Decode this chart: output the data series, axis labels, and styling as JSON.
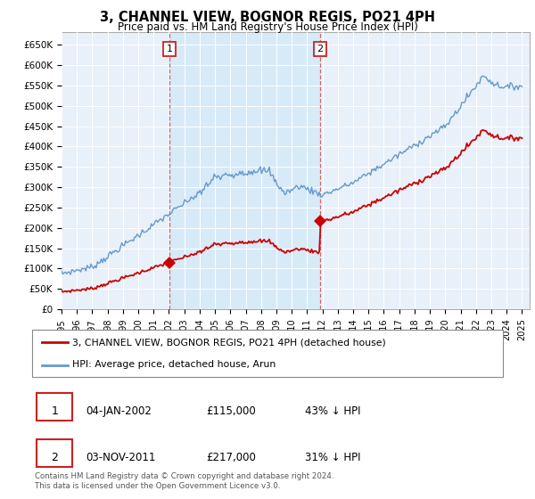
{
  "title": "3, CHANNEL VIEW, BOGNOR REGIS, PO21 4PH",
  "subtitle": "Price paid vs. HM Land Registry's House Price Index (HPI)",
  "ylim": [
    0,
    680000
  ],
  "yticks": [
    0,
    50000,
    100000,
    150000,
    200000,
    250000,
    300000,
    350000,
    400000,
    450000,
    500000,
    550000,
    600000,
    650000
  ],
  "ytick_labels": [
    "£0",
    "£50K",
    "£100K",
    "£150K",
    "£200K",
    "£250K",
    "£300K",
    "£350K",
    "£400K",
    "£450K",
    "£500K",
    "£550K",
    "£600K",
    "£650K"
  ],
  "xlim_start": 1995.0,
  "xlim_end": 2025.5,
  "sale1_date": 2002.03,
  "sale1_price": 115000,
  "sale1_label": "1",
  "sale2_date": 2011.84,
  "sale2_price": 217000,
  "sale2_label": "2",
  "red_line_color": "#cc0000",
  "blue_line_color": "#6699cc",
  "shade_color": "#d0e8f8",
  "background_color": "#e8f0fa",
  "legend_line1": "3, CHANNEL VIEW, BOGNOR REGIS, PO21 4PH (detached house)",
  "legend_line2": "HPI: Average price, detached house, Arun",
  "footer1": "Contains HM Land Registry data © Crown copyright and database right 2024.",
  "footer2": "This data is licensed under the Open Government Licence v3.0.",
  "annotation1_date": "04-JAN-2002",
  "annotation1_price": "£115,000",
  "annotation1_pct": "43% ↓ HPI",
  "annotation2_date": "03-NOV-2011",
  "annotation2_price": "£217,000",
  "annotation2_pct": "31% ↓ HPI"
}
